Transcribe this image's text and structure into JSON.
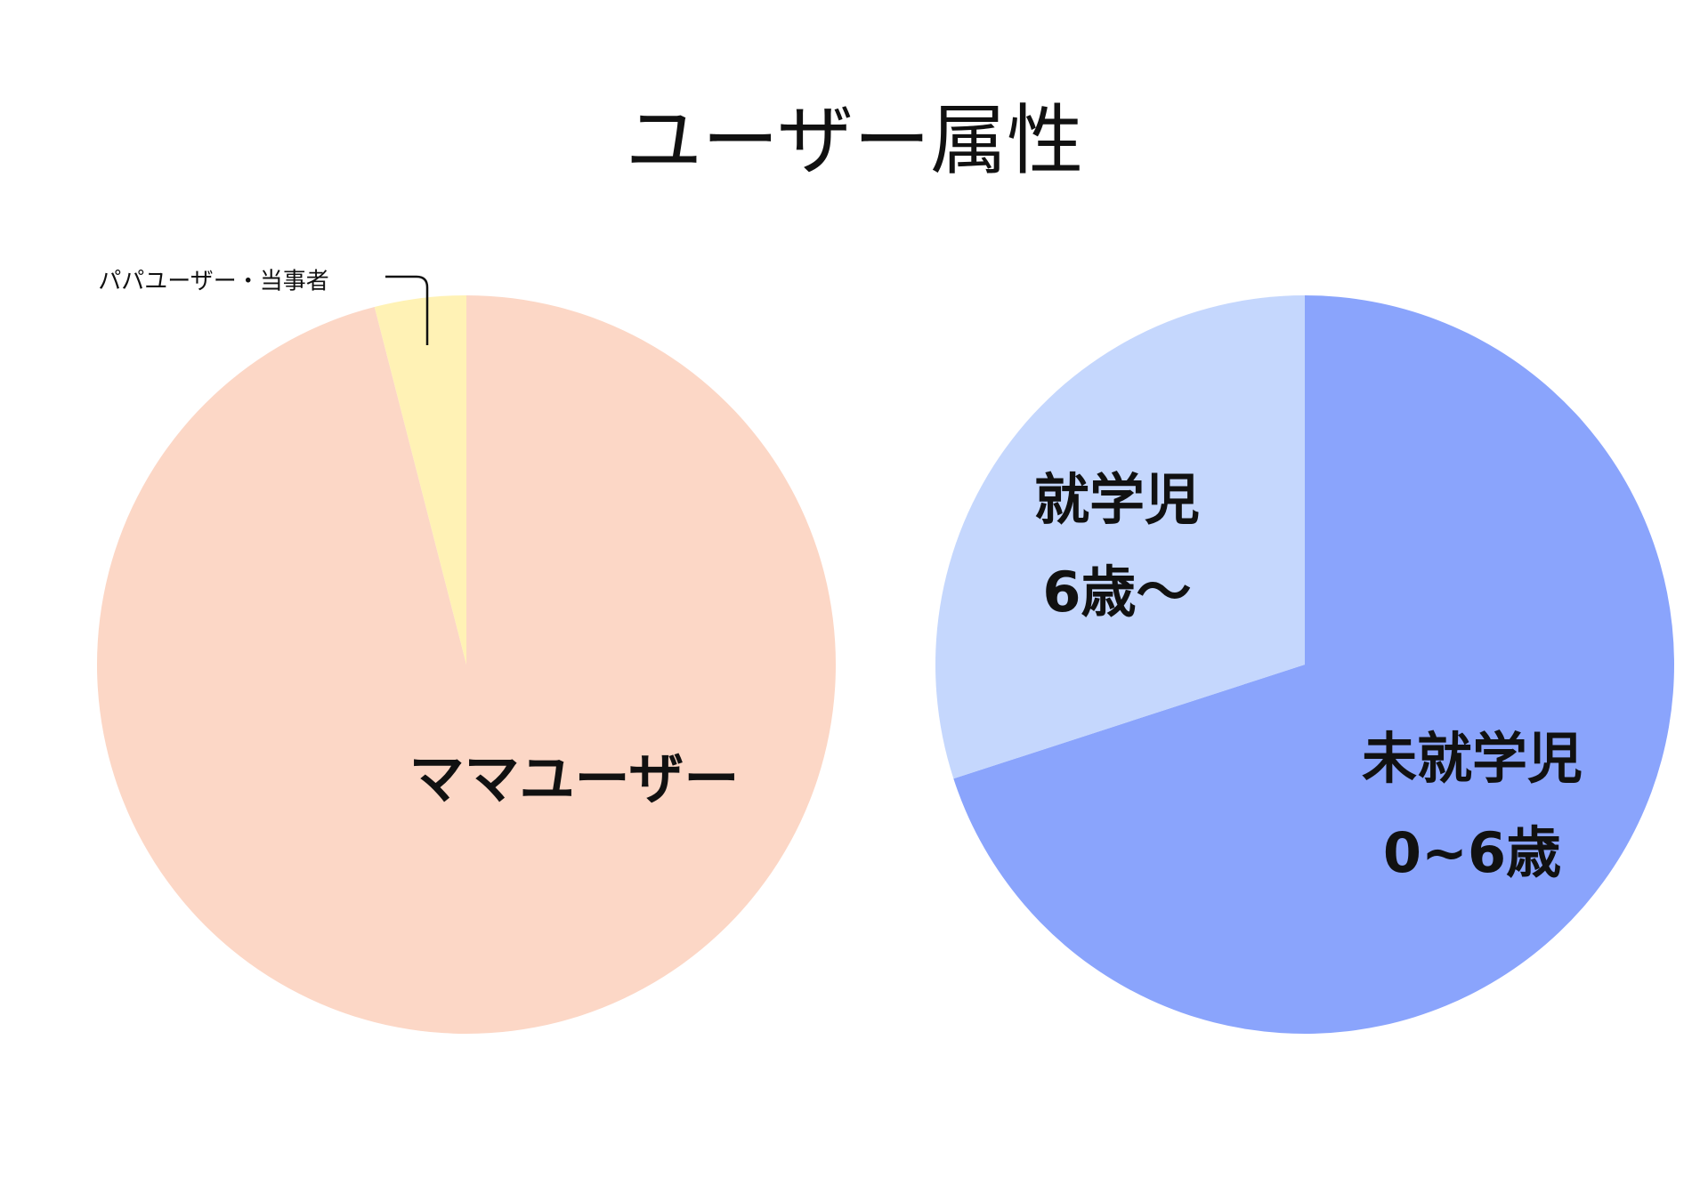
{
  "title": "ユーザー属性",
  "chart_data": [
    {
      "type": "pie",
      "categories": [
        "ママユーザー",
        "パパユーザー・当事者"
      ],
      "values": [
        96,
        4
      ],
      "colors": [
        "#fcd7c6",
        "#fff2b5"
      ]
    },
    {
      "type": "pie",
      "categories": [
        "未就学児",
        "就学児"
      ],
      "category_notes": [
        "0~6歳",
        "6歳〜"
      ],
      "values": [
        70,
        30
      ],
      "colors": [
        "#8aa4fc",
        "#c5d7fd"
      ]
    }
  ]
}
